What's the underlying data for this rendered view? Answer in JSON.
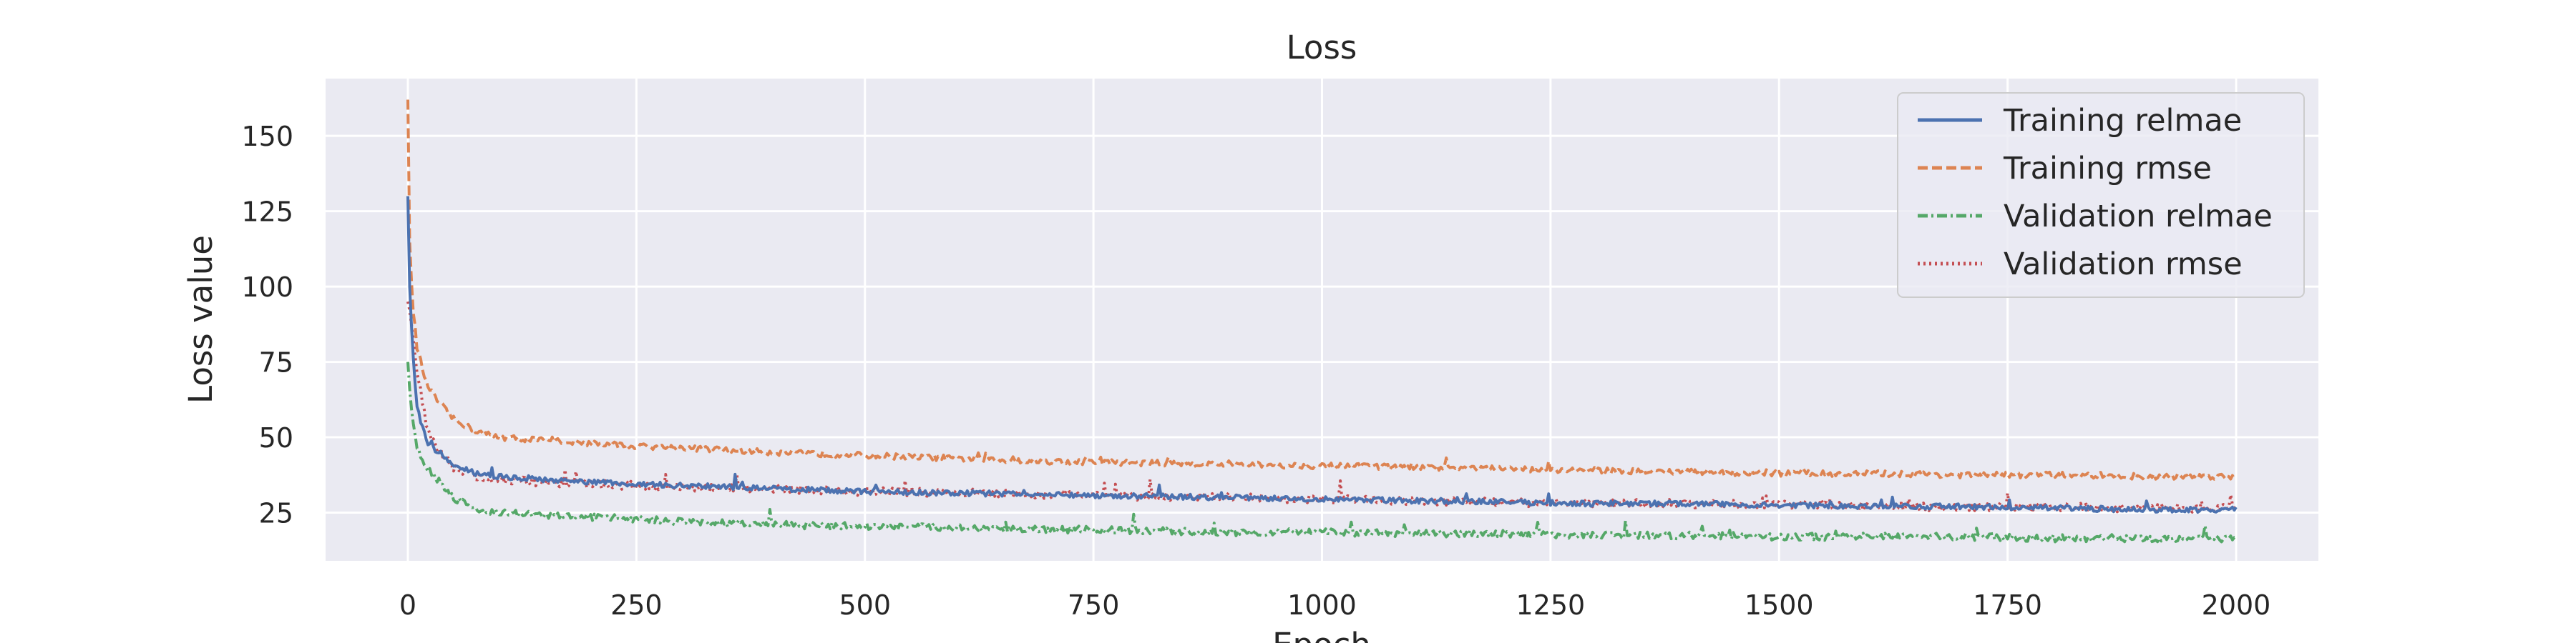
{
  "chart_data": {
    "type": "line",
    "title": "Loss",
    "xlabel": "Epoch",
    "ylabel": "Loss value",
    "xlim": [
      -90,
      2090
    ],
    "ylim": [
      9,
      169
    ],
    "xticks": [
      0,
      250,
      500,
      750,
      1000,
      1250,
      1500,
      1750,
      2000
    ],
    "yticks": [
      25,
      50,
      75,
      100,
      125,
      150
    ],
    "grid": true,
    "legend_position": "top-right",
    "series": [
      {
        "name": "Training relmae",
        "color": "#4c72b0",
        "style": "solid",
        "noise": 0.9,
        "x": [
          0,
          2,
          5,
          10,
          20,
          30,
          50,
          75,
          100,
          150,
          200,
          250,
          300,
          400,
          500,
          600,
          700,
          800,
          900,
          1000,
          1100,
          1200,
          1300,
          1400,
          1500,
          1600,
          1700,
          1800,
          1900,
          2000
        ],
        "y": [
          130,
          100,
          80,
          60,
          49,
          46,
          41,
          38,
          37,
          36,
          35,
          34.5,
          34,
          33,
          32,
          31.5,
          31,
          30.5,
          30,
          29.5,
          29,
          28.5,
          28,
          28,
          27.5,
          27,
          27,
          26.5,
          26,
          26
        ]
      },
      {
        "name": "Training rmse",
        "color": "#dd8452",
        "style": "dashed",
        "noise": 1.0,
        "x": [
          0,
          2,
          5,
          10,
          20,
          30,
          50,
          75,
          100,
          150,
          200,
          250,
          300,
          400,
          500,
          600,
          700,
          800,
          900,
          1000,
          1100,
          1200,
          1300,
          1400,
          1500,
          1600,
          1700,
          1800,
          1900,
          2000
        ],
        "y": [
          162,
          115,
          95,
          80,
          68,
          63,
          56,
          52,
          50,
          49,
          48,
          47,
          46.5,
          45,
          44,
          43,
          42,
          41.5,
          41,
          40.5,
          40,
          39.5,
          39,
          38.5,
          38,
          38,
          37.5,
          37.5,
          37,
          37
        ]
      },
      {
        "name": "Validation relmae",
        "color": "#55a868",
        "style": "dashdot",
        "noise": 1.2,
        "x": [
          0,
          2,
          5,
          10,
          20,
          30,
          50,
          75,
          100,
          150,
          200,
          250,
          300,
          400,
          500,
          600,
          700,
          800,
          900,
          1000,
          1100,
          1200,
          1300,
          1400,
          1500,
          1600,
          1700,
          1800,
          1900,
          2000
        ],
        "y": [
          75,
          66,
          56,
          47,
          40,
          37,
          30,
          26,
          25,
          24,
          23.5,
          23,
          22,
          21,
          20.5,
          20,
          19.5,
          19,
          18.5,
          18.5,
          18,
          18,
          17.5,
          17.5,
          17,
          17,
          17,
          16.5,
          16.5,
          16.5
        ]
      },
      {
        "name": "Validation rmse",
        "color": "#c44e52",
        "style": "dotted",
        "noise": 1.4,
        "x": [
          0,
          2,
          5,
          10,
          20,
          30,
          50,
          75,
          100,
          150,
          200,
          250,
          300,
          400,
          500,
          600,
          700,
          800,
          900,
          1000,
          1100,
          1200,
          1300,
          1400,
          1500,
          1600,
          1700,
          1800,
          1900,
          2000
        ],
        "y": [
          95,
          92,
          85,
          70,
          55,
          47,
          40,
          37,
          36,
          35,
          34.5,
          34,
          33.5,
          33,
          32,
          31.5,
          31,
          30.5,
          30,
          29.5,
          29,
          28.5,
          28,
          28,
          27.5,
          27,
          27,
          27,
          26.5,
          26.5
        ]
      }
    ]
  }
}
